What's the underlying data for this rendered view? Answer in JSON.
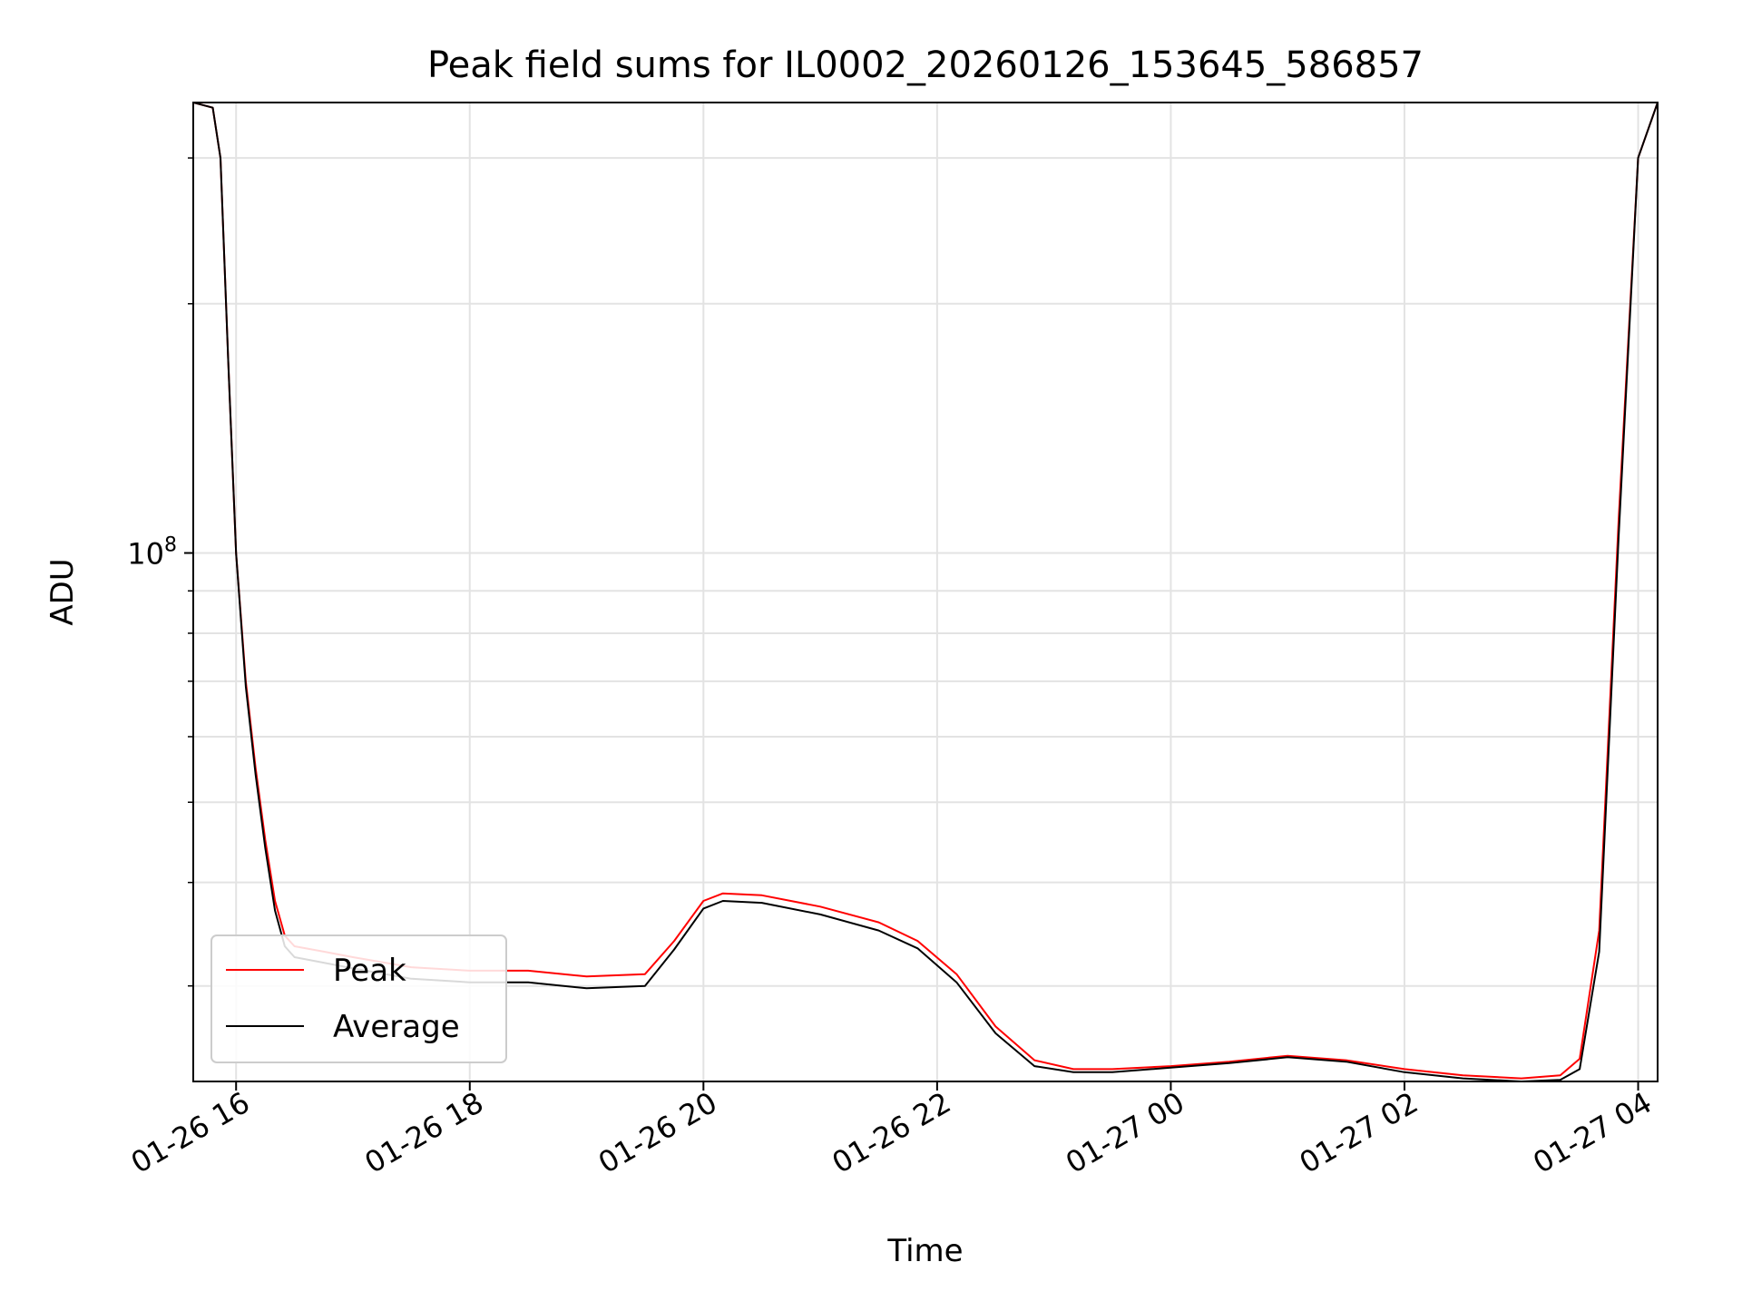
{
  "colors": {
    "peak": "#ff0000",
    "average": "#000000",
    "grid": "#e3e3e3",
    "legend_border": "#cccccc"
  },
  "chart_data": {
    "type": "line",
    "title": "Peak field sums for IL0002_20260126_153645_586857",
    "xlabel": "Time",
    "ylabel": "ADU",
    "yscale": "log",
    "xlim": [
      "2026-01-26 15:38",
      "2026-01-27 04:10"
    ],
    "ylim": [
      23000000,
      350000000
    ],
    "grid": true,
    "legend_position": "lower-left",
    "x_tick_labels": [
      "01-26 16",
      "01-26 18",
      "01-26 20",
      "01-26 22",
      "01-27 00",
      "01-27 02",
      "01-27 04"
    ],
    "x_tick_values": [
      "2026-01-26 16:00",
      "2026-01-26 18:00",
      "2026-01-26 20:00",
      "2026-01-26 22:00",
      "2026-01-27 00:00",
      "2026-01-27 02:00",
      "2026-01-27 04:00"
    ],
    "y_tick_labels": [
      {
        "base": "10",
        "exp": "8"
      }
    ],
    "y_tick_values": [
      100000000
    ],
    "y_minor_ticks": [
      30000000,
      40000000,
      50000000,
      60000000,
      70000000,
      80000000,
      90000000,
      200000000,
      300000000
    ],
    "series": [
      {
        "name": "Peak",
        "color": "#ff0000",
        "x": [
          "2026-01-26 15:38",
          "2026-01-26 15:48",
          "2026-01-26 15:52",
          "2026-01-26 15:56",
          "2026-01-26 16:00",
          "2026-01-26 16:05",
          "2026-01-26 16:10",
          "2026-01-26 16:15",
          "2026-01-26 16:20",
          "2026-01-26 16:25",
          "2026-01-26 16:30",
          "2026-01-26 16:45",
          "2026-01-26 17:00",
          "2026-01-26 17:30",
          "2026-01-26 18:00",
          "2026-01-26 18:30",
          "2026-01-26 19:00",
          "2026-01-26 19:30",
          "2026-01-26 19:45",
          "2026-01-26 20:00",
          "2026-01-26 20:10",
          "2026-01-26 20:30",
          "2026-01-26 21:00",
          "2026-01-26 21:30",
          "2026-01-26 21:50",
          "2026-01-26 22:10",
          "2026-01-26 22:30",
          "2026-01-26 22:50",
          "2026-01-26 23:10",
          "2026-01-26 23:30",
          "2026-01-27 00:00",
          "2026-01-27 00:30",
          "2026-01-27 01:00",
          "2026-01-27 01:30",
          "2026-01-27 02:00",
          "2026-01-27 02:30",
          "2026-01-27 03:00",
          "2026-01-27 03:20",
          "2026-01-27 03:30",
          "2026-01-27 03:40",
          "2026-01-27 03:50",
          "2026-01-27 04:00",
          "2026-01-27 04:10"
        ],
        "y": [
          350000000,
          345000000,
          300000000,
          170000000,
          100000000,
          70000000,
          55000000,
          45000000,
          38000000,
          34500000,
          33500000,
          33000000,
          32500000,
          31600000,
          31300000,
          31300000,
          30800000,
          31000000,
          34000000,
          38000000,
          38800000,
          38600000,
          37400000,
          35800000,
          34000000,
          31000000,
          26800000,
          24400000,
          23800000,
          23800000,
          24000000,
          24300000,
          24700000,
          24400000,
          23800000,
          23400000,
          23200000,
          23400000,
          24500000,
          35000000,
          110000000,
          300000000,
          350000000
        ]
      },
      {
        "name": "Average",
        "color": "#000000",
        "x": [
          "2026-01-26 15:38",
          "2026-01-26 15:48",
          "2026-01-26 15:52",
          "2026-01-26 15:56",
          "2026-01-26 16:00",
          "2026-01-26 16:05",
          "2026-01-26 16:10",
          "2026-01-26 16:15",
          "2026-01-26 16:20",
          "2026-01-26 16:25",
          "2026-01-26 16:30",
          "2026-01-26 16:45",
          "2026-01-26 17:00",
          "2026-01-26 17:30",
          "2026-01-26 18:00",
          "2026-01-26 18:30",
          "2026-01-26 19:00",
          "2026-01-26 19:30",
          "2026-01-26 19:45",
          "2026-01-26 20:00",
          "2026-01-26 20:10",
          "2026-01-26 20:30",
          "2026-01-26 21:00",
          "2026-01-26 21:30",
          "2026-01-26 21:50",
          "2026-01-26 22:10",
          "2026-01-26 22:30",
          "2026-01-26 22:50",
          "2026-01-26 23:10",
          "2026-01-26 23:30",
          "2026-01-27 00:00",
          "2026-01-27 00:30",
          "2026-01-27 01:00",
          "2026-01-27 01:30",
          "2026-01-27 02:00",
          "2026-01-27 02:30",
          "2026-01-27 03:00",
          "2026-01-27 03:20",
          "2026-01-27 03:30",
          "2026-01-27 03:40",
          "2026-01-27 03:50",
          "2026-01-27 04:00",
          "2026-01-27 04:10"
        ],
        "y": [
          350000000,
          345000000,
          300000000,
          170000000,
          100000000,
          69000000,
          54000000,
          44000000,
          37000000,
          33500000,
          32500000,
          32000000,
          31500000,
          30600000,
          30300000,
          30300000,
          29800000,
          30000000,
          33200000,
          37200000,
          38000000,
          37800000,
          36600000,
          35000000,
          33300000,
          30300000,
          26300000,
          24000000,
          23600000,
          23600000,
          23900000,
          24200000,
          24600000,
          24300000,
          23600000,
          23200000,
          23000000,
          23100000,
          23800000,
          33000000,
          105000000,
          300000000,
          350000000
        ]
      }
    ]
  }
}
